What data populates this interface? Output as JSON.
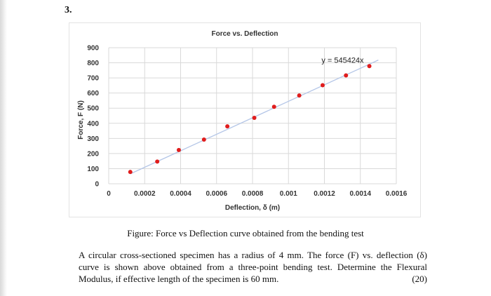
{
  "question_number": "3.",
  "chart_data": {
    "type": "scatter",
    "title": "Force vs. Deflection",
    "xlabel": "Deflection, δ (m)",
    "ylabel": "Force, F (N)",
    "xlim": [
      0,
      0.0016
    ],
    "ylim": [
      0,
      900
    ],
    "x_tick_labels": [
      "0",
      "0.0002",
      "0.0004",
      "0.0006",
      "0.0008",
      "0.001",
      "0.0012",
      "0.0014",
      "0.0016"
    ],
    "y_tick_labels": [
      "0",
      "100",
      "200",
      "300",
      "400",
      "500",
      "600",
      "700",
      "800",
      "900"
    ],
    "grid": true,
    "trendline": {
      "type": "linear",
      "slope": 545424,
      "equation": "y = 545424x"
    },
    "series": [
      {
        "x": [
          0.00012,
          0.00027,
          0.00039,
          0.00053,
          0.00066,
          0.00081,
          0.00092,
          0.00106,
          0.00119,
          0.00132,
          0.00145
        ],
        "y": [
          78,
          147,
          223,
          292,
          380,
          436,
          509,
          584,
          652,
          717,
          778
        ],
        "color": "#e01d1d"
      }
    ],
    "trendline_color": "#b4c6e7"
  },
  "caption": "Figure: Force vs Deflection curve obtained from the bending test",
  "problem_text": "A circular cross-sectioned specimen has a radius of 4 mm. The force (F) vs. deflection (δ) curve is shown above obtained from a three-point bending test. Determine the Flexural Modulus, if effective length of the specimen is 60 mm.",
  "marks": "(20)"
}
